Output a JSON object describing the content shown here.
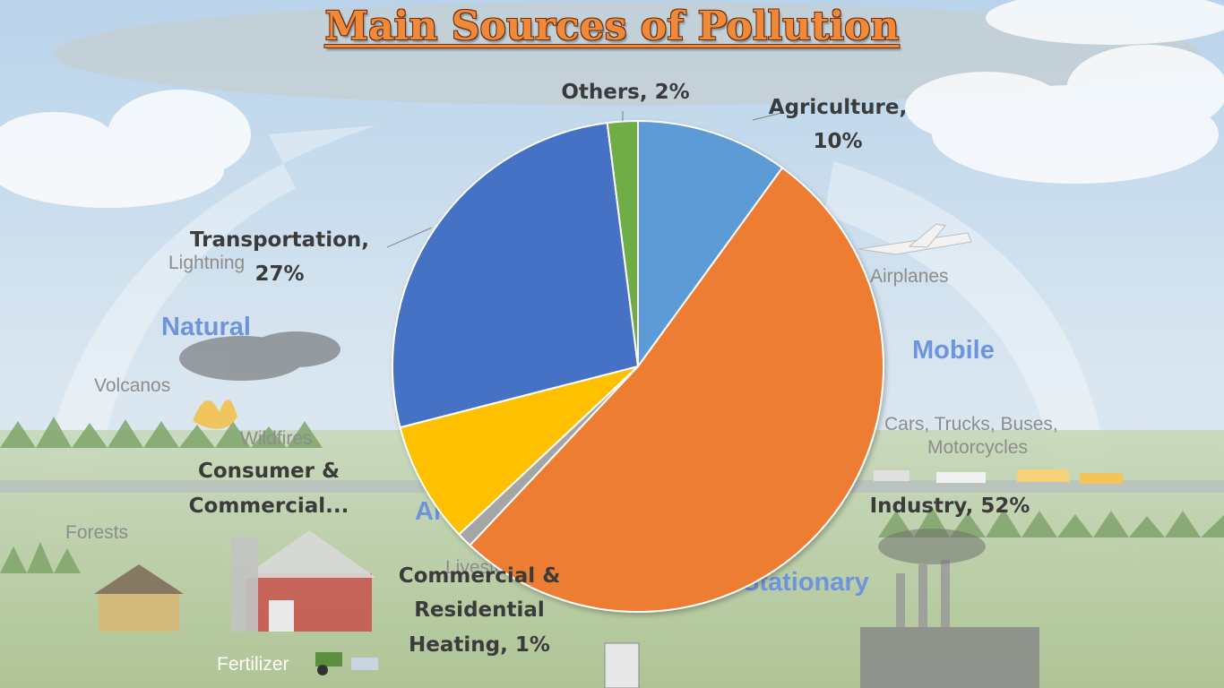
{
  "background": {
    "labels": [
      {
        "key": "lightning",
        "text": "Lightning"
      },
      {
        "key": "volcanos",
        "text": "Volcanos"
      },
      {
        "key": "wildfires",
        "text": "Wildfires"
      },
      {
        "key": "forests",
        "text": "Forests"
      },
      {
        "key": "fertilizer",
        "text": "Fertilizer"
      },
      {
        "key": "airplanes",
        "text": "Airplanes"
      },
      {
        "key": "cars",
        "text": "Cars, Trucks, Buses,"
      },
      {
        "key": "motorcycles",
        "text": "Motorcycles"
      },
      {
        "key": "livestock",
        "text": "Livesto"
      }
    ],
    "categories": [
      {
        "key": "natural",
        "text": "Natural"
      },
      {
        "key": "mobile",
        "text": "Mobile"
      },
      {
        "key": "stationary",
        "text": "Stationary"
      },
      {
        "key": "area",
        "text": "Ar"
      }
    ]
  },
  "chart_data": {
    "type": "pie",
    "title": "Main Sources of Pollution",
    "start_angle_deg": 0,
    "direction": "clockwise",
    "slices": [
      {
        "name": "Agriculture",
        "value": 10,
        "label": "Agriculture, 10%",
        "color": "#5b9bd5"
      },
      {
        "name": "Industry",
        "value": 52,
        "label": "Industry, 52%",
        "color": "#ed7d31"
      },
      {
        "name": "Commercial & Residential Heating",
        "value": 1,
        "label": "Commercial & Residential Heating, 1%",
        "color": "#a5a5a5"
      },
      {
        "name": "Consumer & Commercial...",
        "value": 8,
        "label": "Consumer & Commercial...",
        "color": "#ffc000"
      },
      {
        "name": "Transportation",
        "value": 27,
        "label": "Transportation, 27%",
        "color": "#4472c4"
      },
      {
        "name": "Others",
        "value": 2,
        "label": "Others, 2%",
        "color": "#70ad47"
      }
    ]
  }
}
